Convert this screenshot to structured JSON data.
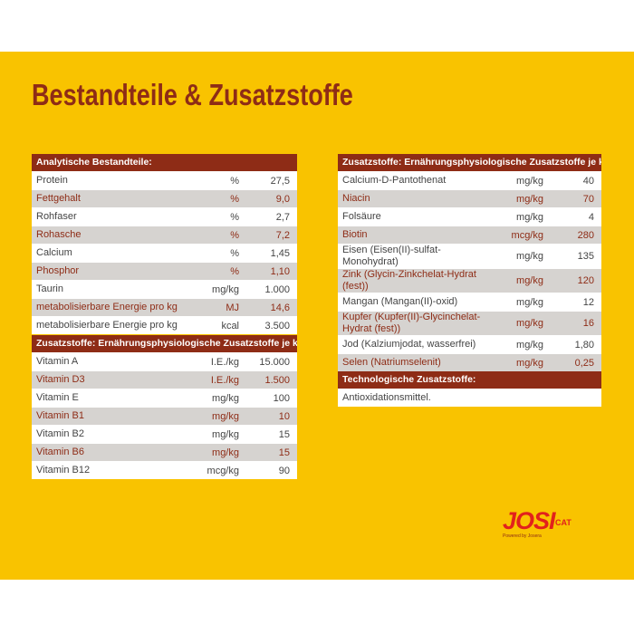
{
  "title": "Bestandteile & Zusatzstoffe",
  "tables": [
    {
      "header": "Analytische Bestandteile:",
      "rows": [
        [
          "Protein",
          "%",
          "27,5"
        ],
        [
          "Fettgehalt",
          "%",
          "9,0"
        ],
        [
          "Rohfaser",
          "%",
          "2,7"
        ],
        [
          "Rohasche",
          "%",
          "7,2"
        ],
        [
          "Calcium",
          "%",
          "1,45"
        ],
        [
          "Phosphor",
          "%",
          "1,10"
        ],
        [
          "Taurin",
          "mg/kg",
          "1.000"
        ],
        [
          "metabolisierbare Energie pro kg",
          "MJ",
          "14,6"
        ],
        [
          "metabolisierbare Energie pro kg",
          "kcal",
          "3.500"
        ]
      ]
    },
    {
      "header": "Zusatzstoffe: Ernährungsphysiologische Zusatzstoffe je kg:",
      "rows": [
        [
          "Vitamin A",
          "I.E./kg",
          "15.000"
        ],
        [
          "Vitamin D3",
          "I.E./kg",
          "1.500"
        ],
        [
          "Vitamin E",
          "mg/kg",
          "100"
        ],
        [
          "Vitamin B1",
          "mg/kg",
          "10"
        ],
        [
          "Vitamin B2",
          "mg/kg",
          "15"
        ],
        [
          "Vitamin B6",
          "mg/kg",
          "15"
        ],
        [
          "Vitamin B12",
          "mcg/kg",
          "90"
        ]
      ]
    },
    {
      "header": "Zusatzstoffe: Ernährungsphysiologische Zusatzstoffe je kg:",
      "rows": [
        [
          "Calcium-D-Pantothenat",
          "mg/kg",
          "40"
        ],
        [
          "Niacin",
          "mg/kg",
          "70"
        ],
        [
          "Folsäure",
          "mg/kg",
          "4"
        ],
        [
          "Biotin",
          "mcg/kg",
          "280"
        ],
        [
          "Eisen (Eisen(II)-sulfat-Monohydrat)",
          "mg/kg",
          "135"
        ],
        [
          "Zink (Glycin-Zinkchelat-Hydrat (fest))",
          "mg/kg",
          "120"
        ],
        [
          "Mangan (Mangan(II)-oxid)",
          "mg/kg",
          "12"
        ],
        [
          "Kupfer (Kupfer(II)-Glycinchelat-Hydrat (fest))",
          "mg/kg",
          "16"
        ],
        [
          "Jod (Kalziumjodat, wasserfrei)",
          "mg/kg",
          "1,80"
        ],
        [
          "Selen (Natriumselenit)",
          "mg/kg",
          "0,25"
        ]
      ]
    },
    {
      "header": "Technologische Zusatzstoffe:",
      "rows": [
        [
          "Antioxidationsmittel."
        ]
      ]
    }
  ],
  "logo": {
    "brand": "JOSI",
    "sub": "CAT",
    "tagline": "Powered by Josera"
  }
}
